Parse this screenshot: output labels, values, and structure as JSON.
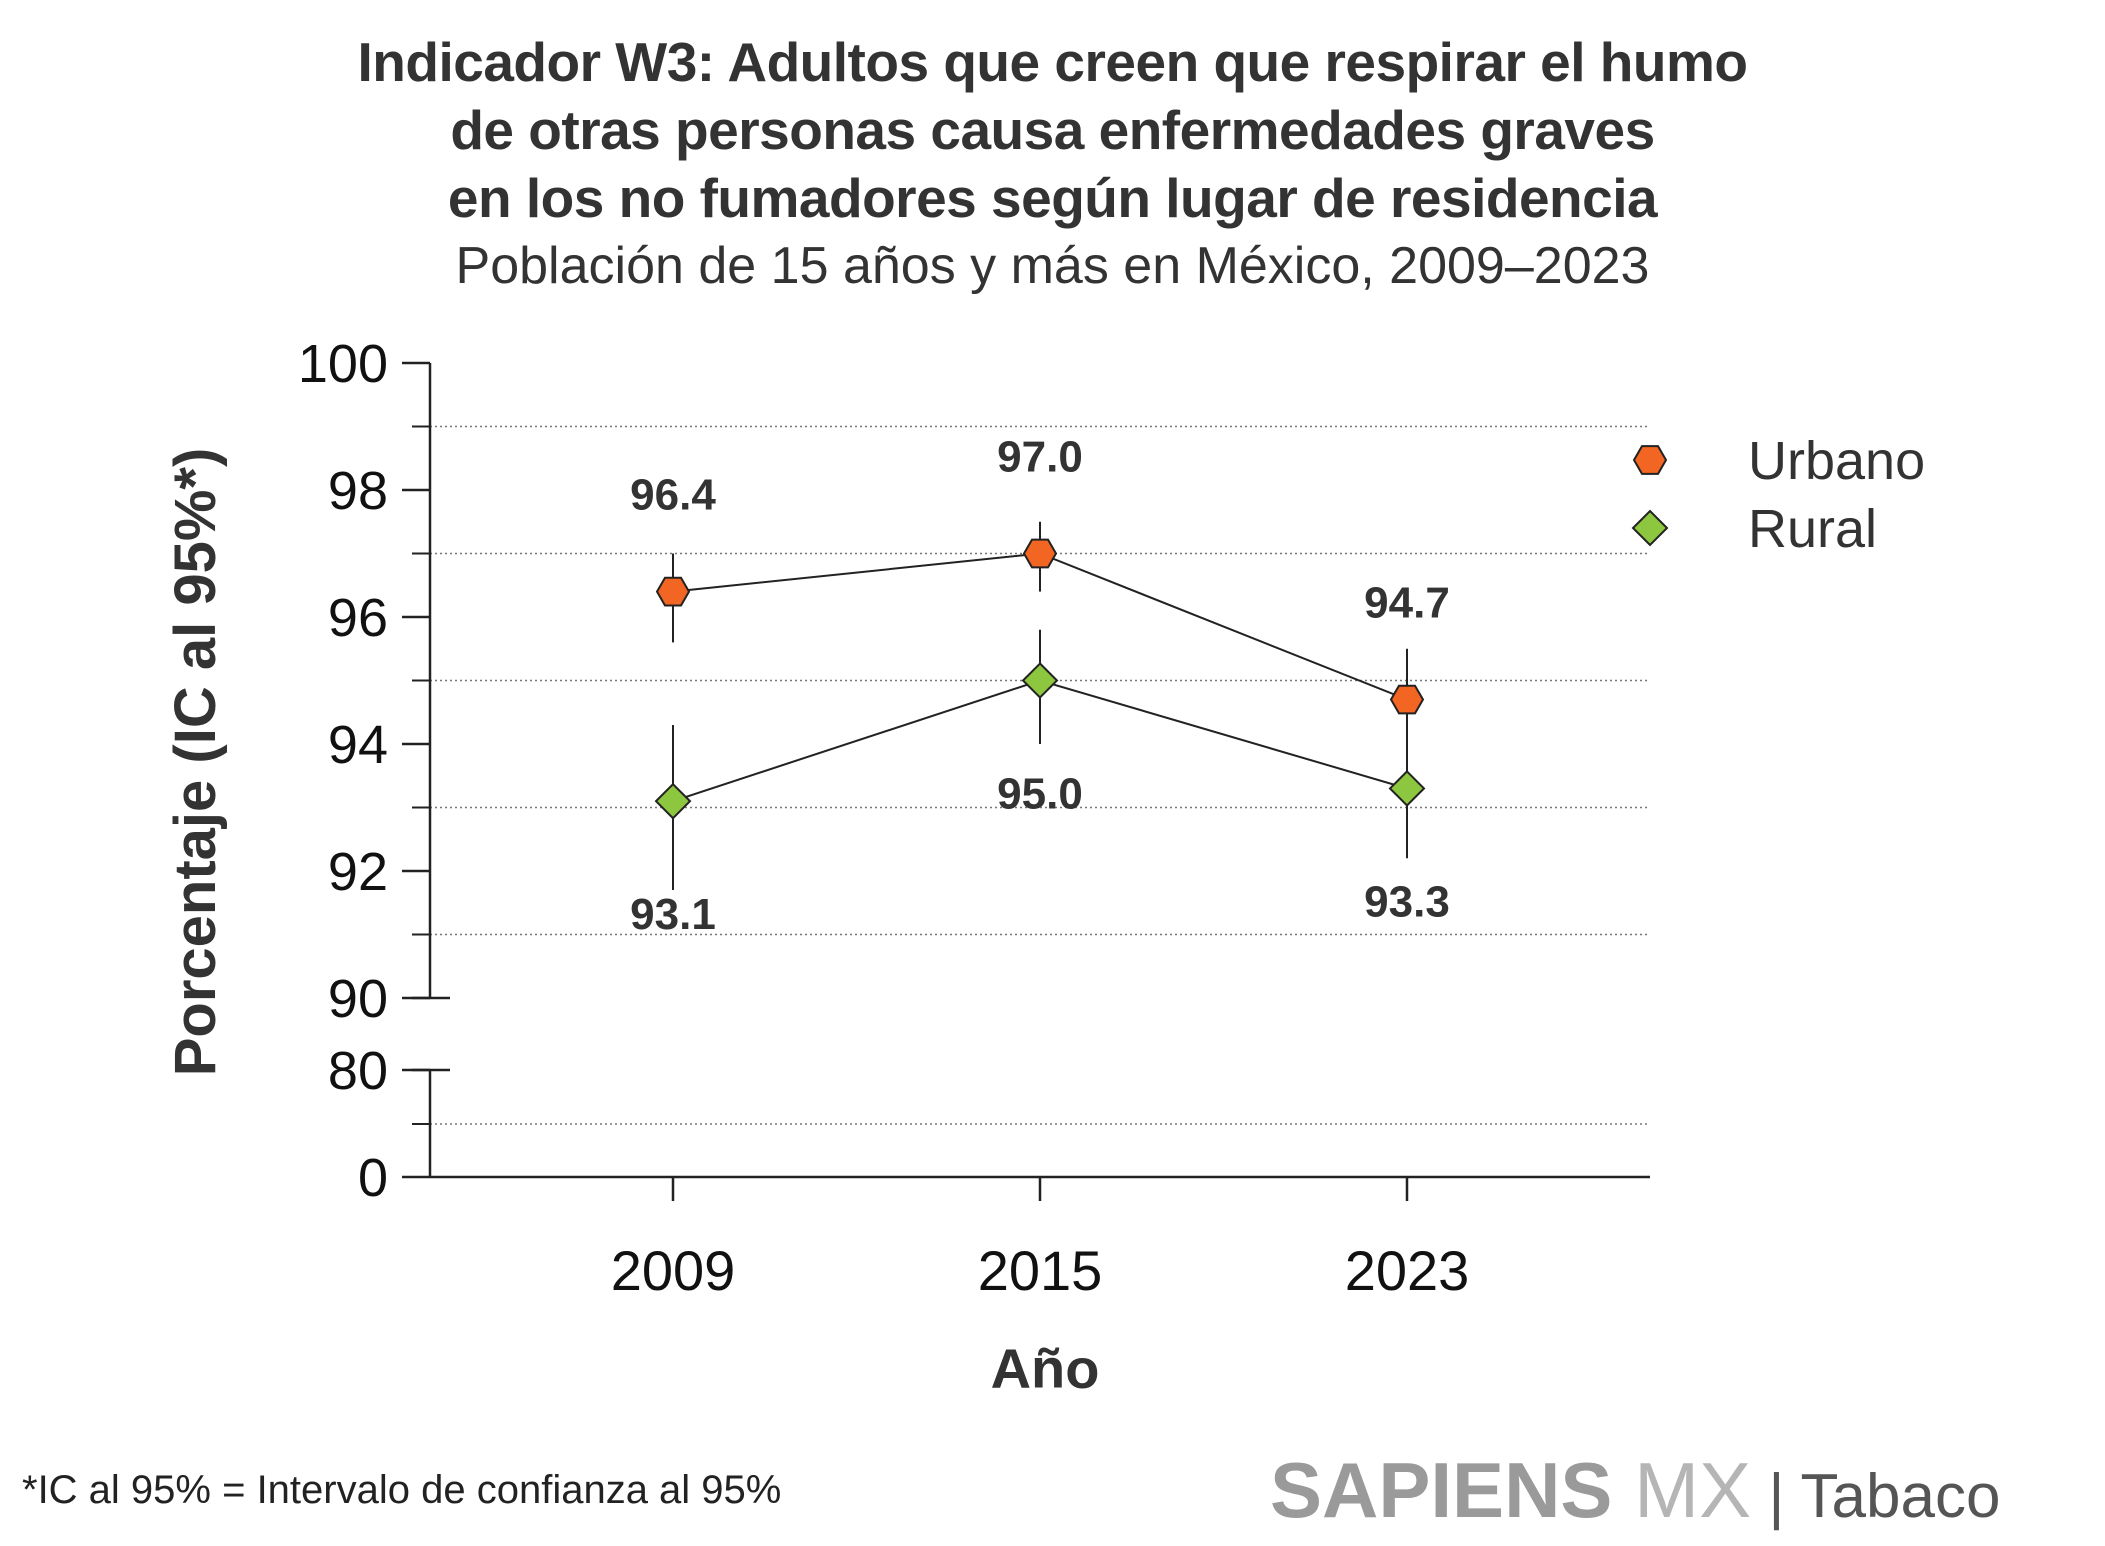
{
  "chart_data": {
    "type": "line",
    "title": [
      "Indicador W3: Adultos que creen que respirar el humo",
      "de otras personas causa enfermedades graves",
      "en los no fumadores según lugar de residencia"
    ],
    "subtitle": "Población de 15 años y más en México, 2009–2023",
    "xlabel": "Año",
    "ylabel": "Porcentaje (IC al 95%*)",
    "categories": [
      "2009",
      "2015",
      "2023"
    ],
    "y_ticks_upper": [
      "100",
      "98",
      "96",
      "94",
      "92",
      "90"
    ],
    "y_ticks_lower": [
      "80",
      "0"
    ],
    "ylim": [
      90,
      100
    ],
    "axis_break": true,
    "grid": true,
    "legend_position": "top-right",
    "series": [
      {
        "name": "Urbano",
        "marker": "hexagon",
        "color": "#F26522",
        "values": [
          96.4,
          97.0,
          94.7
        ],
        "labels": [
          "96.4",
          "97.0",
          "94.7"
        ],
        "ci_low": [
          95.6,
          96.4,
          93.3
        ],
        "ci_high": [
          97.0,
          97.5,
          95.5
        ]
      },
      {
        "name": "Rural",
        "marker": "diamond",
        "color": "#8DC63F",
        "values": [
          93.1,
          95.0,
          93.3
        ],
        "labels": [
          "93.1",
          "95.0",
          "93.3"
        ],
        "ci_low": [
          91.7,
          94.0,
          92.2
        ],
        "ci_high": [
          94.3,
          95.8,
          94.3
        ]
      }
    ]
  },
  "footnote": "*IC al 95% = Intervalo de confianza al 95%",
  "brand": {
    "name": "SAPIENS",
    "suffix": " MX",
    "section": " | Tabaco"
  }
}
